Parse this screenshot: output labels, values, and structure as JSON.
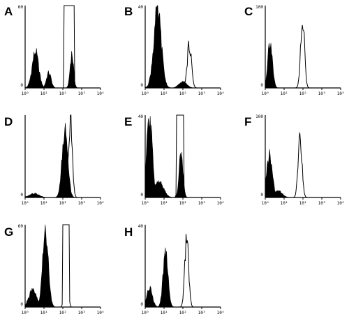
{
  "chart_data": [
    {
      "type": "area",
      "panel": "A",
      "x_scale": "log",
      "xlim": [
        1,
        10000
      ],
      "x_tick_labels": [
        "10⁰",
        "10¹",
        "10²",
        "10³",
        "10⁴"
      ],
      "y_tick_labels": [
        "0",
        "60"
      ],
      "ylim": [
        0,
        60
      ],
      "series": [
        {
          "style": "filled",
          "peaks": [
            [
              3.5,
              26,
              0.17
            ],
            [
              18,
              11,
              0.12
            ],
            [
              300,
              25,
              0.09
            ]
          ]
        },
        {
          "style": "open",
          "peaks": [
            [
              220,
              60,
              0.07
            ]
          ],
          "plateau": [
            [
              110,
              420
            ]
          ]
        }
      ]
    },
    {
      "type": "area",
      "panel": "B",
      "x_scale": "log",
      "xlim": [
        1,
        10000
      ],
      "x_tick_labels": [
        "10⁰",
        "10¹",
        "10²",
        "10³",
        "10⁴"
      ],
      "y_tick_labels": [
        "0",
        "40"
      ],
      "ylim": [
        0,
        40
      ],
      "series": [
        {
          "style": "filled",
          "peaks": [
            [
              4.5,
              37,
              0.2
            ],
            [
              100,
              3,
              0.2
            ]
          ]
        },
        {
          "style": "open",
          "peaks": [
            [
              220,
              21,
              0.11
            ]
          ]
        }
      ]
    },
    {
      "type": "area",
      "panel": "C",
      "x_scale": "log",
      "xlim": [
        1,
        10000
      ],
      "x_tick_labels": [
        "10⁰",
        "10¹",
        "10²",
        "10³",
        "10⁴"
      ],
      "y_tick_labels": [
        "0",
        "100"
      ],
      "ylim": [
        0,
        100
      ],
      "series": [
        {
          "style": "filled",
          "peaks": [
            [
              1.8,
              58,
              0.12
            ]
          ]
        },
        {
          "style": "open",
          "peaks": [
            [
              95,
              85,
              0.1
            ]
          ]
        }
      ]
    },
    {
      "type": "area",
      "panel": "D",
      "x_scale": "log",
      "xlim": [
        1,
        10000
      ],
      "x_tick_labels": [
        "10⁰",
        "10¹",
        "10²",
        "10³",
        "10⁴"
      ],
      "y_tick_labels": [
        "0"
      ],
      "ylim": [
        0,
        100
      ],
      "series": [
        {
          "style": "filled",
          "peaks": [
            [
              130,
              82,
              0.15
            ],
            [
              3,
              5,
              0.25
            ]
          ]
        },
        {
          "style": "open",
          "peaks": [
            [
              250,
              96,
              0.1
            ]
          ]
        }
      ]
    },
    {
      "type": "area",
      "panel": "E",
      "x_scale": "log",
      "xlim": [
        1,
        10000
      ],
      "x_tick_labels": [
        "10⁰",
        "10¹",
        "10²",
        "10³",
        "10⁴"
      ],
      "y_tick_labels": [
        "0",
        "40"
      ],
      "ylim": [
        0,
        40
      ],
      "series": [
        {
          "style": "filled",
          "peaks": [
            [
              1.7,
              38,
              0.15
            ],
            [
              5,
              8,
              0.25
            ],
            [
              80,
              21,
              0.1
            ]
          ]
        },
        {
          "style": "open",
          "peaks": [
            [
              70,
              40,
              0.08
            ]
          ],
          "plateau": [
            [
              45,
              110
            ]
          ]
        }
      ]
    },
    {
      "type": "area",
      "panel": "F",
      "x_scale": "log",
      "xlim": [
        1,
        10000
      ],
      "x_tick_labels": [
        "10⁰",
        "10¹",
        "10²",
        "10³",
        "10⁴"
      ],
      "y_tick_labels": [
        "0",
        "100"
      ],
      "ylim": [
        0,
        100
      ],
      "series": [
        {
          "style": "filled",
          "peaks": [
            [
              1.7,
              50,
              0.15
            ],
            [
              5,
              8,
              0.2
            ]
          ]
        },
        {
          "style": "open",
          "peaks": [
            [
              70,
              75,
              0.1
            ]
          ]
        }
      ]
    },
    {
      "type": "area",
      "panel": "G",
      "x_scale": "log",
      "xlim": [
        1,
        10000
      ],
      "x_tick_labels": [
        "10⁰",
        "10¹",
        "10²",
        "10³",
        "10⁴"
      ],
      "y_tick_labels": [
        "0",
        "60"
      ],
      "ylim": [
        0,
        60
      ],
      "series": [
        {
          "style": "filled",
          "peaks": [
            [
              12,
              55,
              0.15
            ],
            [
              2.5,
              12,
              0.2
            ]
          ]
        },
        {
          "style": "open",
          "peaks": [
            [
              150,
              60,
              0.08
            ]
          ],
          "plateau": [
            [
              95,
              230
            ]
          ]
        }
      ]
    },
    {
      "type": "area",
      "panel": "H",
      "x_scale": "log",
      "xlim": [
        1,
        10000
      ],
      "x_tick_labels": [
        "10⁰",
        "10¹",
        "10²",
        "10³",
        "10⁴"
      ],
      "y_tick_labels": [
        "0",
        "40"
      ],
      "ylim": [
        0,
        40
      ],
      "series": [
        {
          "style": "filled",
          "peaks": [
            [
              12,
              26,
              0.13
            ],
            [
              1.7,
              9,
              0.15
            ]
          ]
        },
        {
          "style": "open",
          "peaks": [
            [
              160,
              34,
              0.1
            ]
          ]
        }
      ]
    }
  ]
}
